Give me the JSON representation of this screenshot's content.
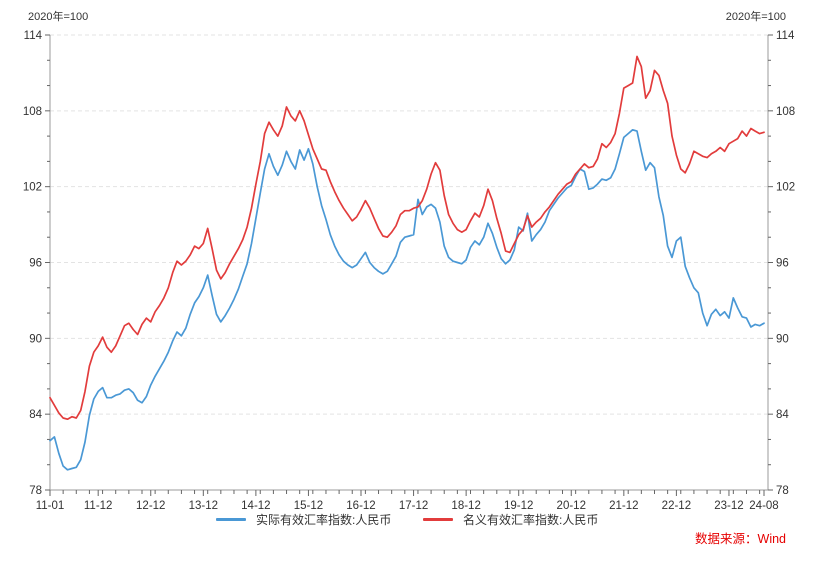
{
  "header": {
    "unit_label_left": "2020年=100",
    "unit_label_right": "2020年=100"
  },
  "source": {
    "label": "数据来源：Wind",
    "color": "#e60000"
  },
  "axis_colors": {
    "axis_line": "#9b9b9b",
    "tick": "#666666",
    "label": "#333333",
    "gridline": "#e3e3e3"
  },
  "chart_data": {
    "type": "line",
    "title": "",
    "x_start": "2011-01",
    "x_end": "2024-08",
    "frequency": "monthly",
    "x_tick_labels": [
      "11-01",
      "11-12",
      "12-12",
      "13-12",
      "14-12",
      "15-12",
      "16-12",
      "17-12",
      "18-12",
      "19-12",
      "20-12",
      "21-12",
      "22-12",
      "23-12",
      "24-08"
    ],
    "x_tick_month_indices": [
      0,
      11,
      23,
      35,
      47,
      59,
      71,
      83,
      95,
      107,
      119,
      131,
      143,
      155,
      163
    ],
    "y_axis": {
      "min": 78,
      "max": 114,
      "major_step": 6,
      "minor_step": 2,
      "tick_labels": [
        "78",
        "84",
        "90",
        "96",
        "102",
        "108",
        "114"
      ],
      "grid": "dashed horizontal at major ticks"
    },
    "legend_position": "bottom-center",
    "series": [
      {
        "name": "实际有效汇率指数:人民币",
        "color": "#4a98d5",
        "values": [
          81.9,
          82.2,
          80.9,
          79.9,
          79.6,
          79.7,
          79.8,
          80.4,
          81.8,
          83.9,
          85.2,
          85.8,
          86.1,
          85.3,
          85.3,
          85.5,
          85.6,
          85.9,
          86.0,
          85.7,
          85.1,
          84.9,
          85.4,
          86.3,
          87.0,
          87.6,
          88.2,
          88.9,
          89.8,
          90.5,
          90.2,
          90.8,
          91.9,
          92.8,
          93.3,
          94.0,
          95.0,
          93.4,
          91.9,
          91.3,
          91.8,
          92.4,
          93.1,
          93.9,
          94.9,
          95.9,
          97.5,
          99.5,
          101.5,
          103.4,
          104.6,
          103.6,
          102.9,
          103.7,
          104.8,
          104.0,
          103.4,
          104.9,
          104.1,
          105.0,
          103.8,
          102.0,
          100.5,
          99.4,
          98.2,
          97.3,
          96.6,
          96.1,
          95.8,
          95.6,
          95.8,
          96.3,
          96.8,
          96.0,
          95.6,
          95.3,
          95.1,
          95.3,
          95.9,
          96.5,
          97.6,
          98.0,
          98.1,
          98.2,
          101.0,
          99.8,
          100.4,
          100.6,
          100.3,
          99.2,
          97.3,
          96.4,
          96.1,
          96.0,
          95.9,
          96.2,
          97.2,
          97.7,
          97.4,
          98.0,
          99.1,
          98.3,
          97.2,
          96.3,
          95.9,
          96.2,
          97.0,
          98.8,
          98.5,
          99.9,
          97.7,
          98.2,
          98.6,
          99.2,
          100.1,
          100.6,
          101.1,
          101.5,
          101.9,
          102.1,
          102.8,
          103.4,
          103.2,
          101.8,
          101.9,
          102.2,
          102.6,
          102.5,
          102.7,
          103.4,
          104.6,
          105.9,
          106.2,
          106.5,
          106.4,
          104.8,
          103.3,
          103.9,
          103.5,
          101.2,
          99.7,
          97.3,
          96.4,
          97.7,
          98.0,
          95.7,
          94.8,
          94.0,
          93.6,
          92.0,
          91.0,
          91.9,
          92.3,
          91.8,
          92.1,
          91.6,
          93.2,
          92.4,
          91.7,
          91.6,
          90.9,
          91.1,
          91.0,
          91.2
        ]
      },
      {
        "name": "名义有效汇率指数:人民币",
        "color": "#e23c3c",
        "values": [
          85.3,
          84.7,
          84.1,
          83.7,
          83.6,
          83.8,
          83.7,
          84.3,
          85.8,
          87.8,
          88.9,
          89.4,
          90.1,
          89.3,
          88.9,
          89.4,
          90.2,
          91.0,
          91.2,
          90.7,
          90.3,
          91.1,
          91.6,
          91.3,
          92.1,
          92.6,
          93.2,
          94.0,
          95.2,
          96.1,
          95.8,
          96.1,
          96.6,
          97.3,
          97.1,
          97.5,
          98.7,
          97.1,
          95.4,
          94.7,
          95.2,
          95.9,
          96.5,
          97.1,
          97.8,
          98.8,
          100.3,
          102.2,
          104.0,
          106.2,
          107.1,
          106.5,
          106.0,
          106.8,
          108.3,
          107.6,
          107.2,
          108.0,
          107.2,
          106.1,
          105.0,
          104.2,
          103.4,
          103.3,
          102.4,
          101.6,
          100.9,
          100.3,
          99.8,
          99.3,
          99.6,
          100.2,
          100.9,
          100.3,
          99.5,
          98.7,
          98.1,
          98.0,
          98.4,
          98.9,
          99.8,
          100.1,
          100.1,
          100.3,
          100.4,
          100.9,
          101.8,
          103.0,
          103.9,
          103.3,
          101.3,
          99.8,
          99.1,
          98.6,
          98.4,
          98.6,
          99.3,
          99.9,
          99.6,
          100.5,
          101.8,
          100.9,
          99.5,
          98.3,
          96.9,
          96.8,
          97.5,
          98.2,
          98.6,
          99.7,
          98.8,
          99.2,
          99.5,
          100.0,
          100.4,
          100.9,
          101.4,
          101.8,
          102.2,
          102.4,
          103.0,
          103.4,
          103.8,
          103.5,
          103.6,
          104.2,
          105.4,
          105.1,
          105.5,
          106.2,
          107.8,
          109.8,
          110.0,
          110.2,
          112.3,
          111.5,
          109.0,
          109.6,
          111.2,
          110.8,
          109.6,
          108.6,
          106.0,
          104.5,
          103.4,
          103.1,
          103.8,
          104.8,
          104.6,
          104.4,
          104.3,
          104.6,
          104.8,
          105.1,
          104.8,
          105.4,
          105.6,
          105.8,
          106.4,
          106.0,
          106.6,
          106.4,
          106.2,
          106.3
        ]
      }
    ]
  }
}
